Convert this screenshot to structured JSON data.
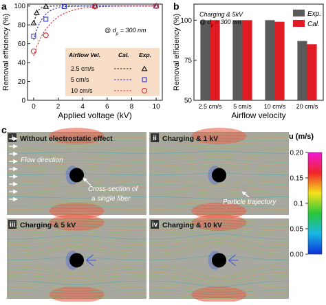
{
  "colors": {
    "black": "#111111",
    "blue": "#2a34c8",
    "red": "#d9262f",
    "exp_bar": "#5a5a5a",
    "cal_bar": "#e01b24",
    "legend_bg": "#f7ddc6",
    "sim_bg": "#a8a8a0"
  },
  "chart_data": [
    {
      "id": "a",
      "panel_label": "a",
      "type": "scatter",
      "xlabel": "Applied voltage (kV)",
      "ylabel": "Removal efficiency (%)",
      "xlim": [
        -0.5,
        10.5
      ],
      "ylim": [
        0,
        102
      ],
      "xticks": [
        0,
        2,
        4,
        6,
        8,
        10
      ],
      "yticks": [
        0,
        20,
        40,
        60,
        80,
        100
      ],
      "annotation": "@ d_p = 300 nm",
      "legend": {
        "header_name": "Airflow Vel.",
        "header_cal": "Cal.",
        "header_exp": "Exp."
      },
      "series": [
        {
          "name": "2.5 cm/s",
          "color": "#111111",
          "marker": "triangle",
          "x": [
            0,
            0.25,
            1,
            5,
            10
          ],
          "y": [
            82,
            93,
            99.5,
            100,
            100
          ],
          "cal_x": [
            0,
            0.1,
            0.2,
            0.3,
            0.45,
            0.6,
            0.8,
            1.0,
            1.3,
            1.6,
            2,
            3,
            4,
            6,
            8,
            10
          ],
          "cal_y": [
            80,
            86,
            90.5,
            93.5,
            96.2,
            97.8,
            98.9,
            99.4,
            99.8,
            99.95,
            100,
            100,
            100,
            100,
            100,
            100
          ]
        },
        {
          "name": "5 cm/s",
          "color": "#2a34c8",
          "marker": "square",
          "x": [
            0,
            1,
            2.5,
            5,
            10
          ],
          "y": [
            68,
            86,
            99.5,
            100,
            100
          ],
          "cal_x": [
            0,
            0.2,
            0.4,
            0.6,
            0.8,
            1.0,
            1.3,
            1.6,
            2,
            2.5,
            3,
            4,
            5,
            6,
            8,
            10
          ],
          "cal_y": [
            64,
            73,
            79.5,
            84.5,
            88.5,
            91.5,
            94.5,
            96.6,
            98.2,
            99.2,
            99.6,
            99.9,
            100,
            100,
            100,
            100
          ]
        },
        {
          "name": "10 cm/s",
          "color": "#d9262f",
          "marker": "circle",
          "x": [
            0,
            1,
            5,
            10
          ],
          "y": [
            52,
            69,
            99.5,
            100
          ],
          "cal_x": [
            0,
            0.25,
            0.5,
            0.75,
            1.0,
            1.5,
            2,
            2.5,
            3,
            3.5,
            4,
            5,
            6,
            7,
            8,
            10
          ],
          "cal_y": [
            47,
            57,
            64.5,
            70.5,
            75.5,
            83,
            88.5,
            92.2,
            94.8,
            96.5,
            97.7,
            99,
            99.6,
            99.8,
            99.9,
            100
          ]
        }
      ]
    },
    {
      "id": "b",
      "panel_label": "b",
      "type": "bar",
      "xlabel": "Airflow velocity",
      "ylabel": "Removal efficiency (%)",
      "ylim": [
        50,
        110
      ],
      "yticks": [
        50,
        75,
        100
      ],
      "annotation_line1": "Charging & 5kV",
      "annotation_line2": "@ d_p = 300 nm",
      "categories": [
        "2.5 cm/s",
        "5 cm/s",
        "10 cm/s",
        "20 cm/s"
      ],
      "series": [
        {
          "name": "Exp.",
          "color": "#5a5a5a",
          "values": [
            100,
            100,
            100,
            87
          ]
        },
        {
          "name": "Cal.",
          "color": "#e01b24",
          "values": [
            100,
            100,
            99,
            85
          ]
        }
      ]
    }
  ],
  "panel_c": {
    "label": "c",
    "subpanels": [
      {
        "roman": "i",
        "title": "Without electrostatic effect"
      },
      {
        "roman": "ii",
        "title": "Charging & 1 kV"
      },
      {
        "roman": "iii",
        "title": "Charging & 5 kV"
      },
      {
        "roman": "iv",
        "title": "Charging & 10 kV"
      }
    ],
    "annotations": {
      "flow_direction": "Flow direction",
      "fiber_line1": "Cross-section of",
      "fiber_line2": "a single fiber",
      "particle_trajectory": "Particle trajectory"
    },
    "colorbar": {
      "title": "u (m/s)",
      "ticks": [
        "0.20",
        "0.15",
        "0.1",
        "0.05",
        "0.00"
      ],
      "min": 0,
      "max": 0.2
    }
  }
}
